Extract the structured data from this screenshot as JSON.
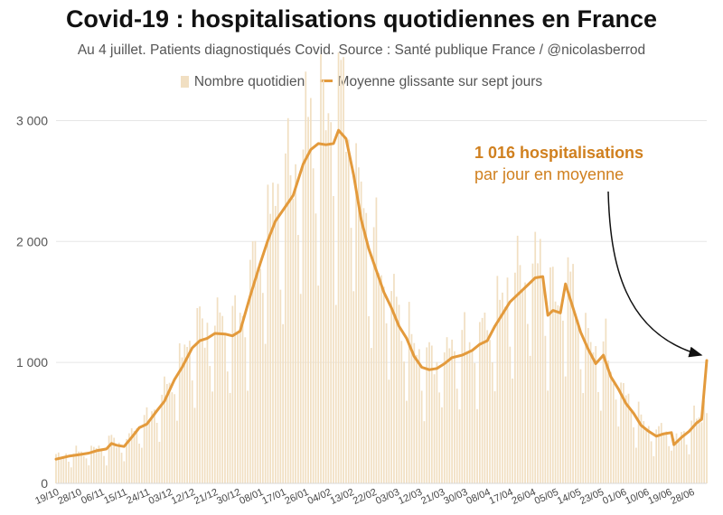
{
  "chart_data": {
    "type": "bar",
    "title": "Covid-19 : hospitalisations quotidiennes en France",
    "subtitle": "Au 4 juillet. Patients diagnostiqués Covid. Source : Santé publique France / @nicolasberrod",
    "legend": [
      "Nombre quotidien",
      "Moyenne glissante sur sept jours"
    ],
    "legend_position": "top-center",
    "ylim": [
      0,
      3200
    ],
    "yticks": [
      0,
      1000,
      2000,
      3000
    ],
    "ytick_labels": [
      "0",
      "1 000",
      "2 000",
      "3 000"
    ],
    "grid": true,
    "x_start": "2020-10-19",
    "x_end": "2021-07-04",
    "xtick_labels": [
      "19/10",
      "28/10",
      "06/11",
      "15/11",
      "24/11",
      "03/12",
      "12/12",
      "21/12",
      "30/12",
      "08/01",
      "17/01",
      "26/01",
      "04/02",
      "13/02",
      "22/02",
      "03/03",
      "12/03",
      "21/03",
      "30/03",
      "08/04",
      "17/04",
      "26/04",
      "05/05",
      "14/05",
      "23/05",
      "01/06",
      "10/06",
      "19/06",
      "28/06"
    ],
    "series": [
      {
        "name": "Moyenne glissante sur sept jours",
        "type": "line",
        "color": "#e39a3c",
        "points": [
          [
            "2020-10-19",
            200
          ],
          [
            "2020-10-24",
            225
          ],
          [
            "2020-10-29",
            240
          ],
          [
            "2020-11-01",
            250
          ],
          [
            "2020-11-04",
            270
          ],
          [
            "2020-11-08",
            285
          ],
          [
            "2020-11-10",
            330
          ],
          [
            "2020-11-12",
            315
          ],
          [
            "2020-11-15",
            305
          ],
          [
            "2020-11-18",
            380
          ],
          [
            "2020-11-21",
            460
          ],
          [
            "2020-11-24",
            490
          ],
          [
            "2020-11-28",
            600
          ],
          [
            "2020-12-01",
            680
          ],
          [
            "2020-12-05",
            860
          ],
          [
            "2020-12-08",
            960
          ],
          [
            "2020-12-12",
            1120
          ],
          [
            "2020-12-15",
            1180
          ],
          [
            "2020-12-18",
            1200
          ],
          [
            "2020-12-21",
            1240
          ],
          [
            "2020-12-25",
            1235
          ],
          [
            "2020-12-28",
            1220
          ],
          [
            "2020-12-31",
            1260
          ],
          [
            "2021-01-04",
            1550
          ],
          [
            "2021-01-08",
            1820
          ],
          [
            "2021-01-11",
            2010
          ],
          [
            "2021-01-14",
            2170
          ],
          [
            "2021-01-17",
            2260
          ],
          [
            "2021-01-21",
            2380
          ],
          [
            "2021-01-25",
            2640
          ],
          [
            "2021-01-28",
            2760
          ],
          [
            "2021-01-31",
            2810
          ],
          [
            "2021-02-03",
            2800
          ],
          [
            "2021-02-06",
            2810
          ],
          [
            "2021-02-08",
            2920
          ],
          [
            "2021-02-11",
            2850
          ],
          [
            "2021-02-14",
            2550
          ],
          [
            "2021-02-17",
            2180
          ],
          [
            "2021-02-20",
            1940
          ],
          [
            "2021-02-23",
            1760
          ],
          [
            "2021-02-26",
            1580
          ],
          [
            "2021-03-01",
            1450
          ],
          [
            "2021-03-04",
            1300
          ],
          [
            "2021-03-07",
            1200
          ],
          [
            "2021-03-10",
            1050
          ],
          [
            "2021-03-13",
            960
          ],
          [
            "2021-03-16",
            940
          ],
          [
            "2021-03-19",
            950
          ],
          [
            "2021-03-22",
            990
          ],
          [
            "2021-03-25",
            1040
          ],
          [
            "2021-03-29",
            1060
          ],
          [
            "2021-04-02",
            1100
          ],
          [
            "2021-04-05",
            1150
          ],
          [
            "2021-04-08",
            1180
          ],
          [
            "2021-04-11",
            1300
          ],
          [
            "2021-04-14",
            1400
          ],
          [
            "2021-04-17",
            1500
          ],
          [
            "2021-04-20",
            1560
          ],
          [
            "2021-04-24",
            1640
          ],
          [
            "2021-04-27",
            1700
          ],
          [
            "2021-04-30",
            1710
          ],
          [
            "2021-05-02",
            1390
          ],
          [
            "2021-05-04",
            1430
          ],
          [
            "2021-05-07",
            1410
          ],
          [
            "2021-05-09",
            1650
          ],
          [
            "2021-05-12",
            1450
          ],
          [
            "2021-05-15",
            1250
          ],
          [
            "2021-05-18",
            1110
          ],
          [
            "2021-05-21",
            990
          ],
          [
            "2021-05-24",
            1060
          ],
          [
            "2021-05-27",
            880
          ],
          [
            "2021-05-30",
            780
          ],
          [
            "2021-06-02",
            660
          ],
          [
            "2021-06-05",
            580
          ],
          [
            "2021-06-08",
            480
          ],
          [
            "2021-06-11",
            430
          ],
          [
            "2021-06-14",
            390
          ],
          [
            "2021-06-17",
            410
          ],
          [
            "2021-06-20",
            420
          ],
          [
            "2021-06-21",
            320
          ],
          [
            "2021-06-24",
            380
          ],
          [
            "2021-06-27",
            430
          ],
          [
            "2021-06-30",
            500
          ],
          [
            "2021-07-02",
            530
          ],
          [
            "2021-07-04",
            1016
          ]
        ]
      },
      {
        "name": "Nombre quotidien",
        "type": "bar",
        "color": "#f1dfc2",
        "shape": "daily values scattered around the seven-day average, with lower weekend values"
      }
    ],
    "annotations": [
      {
        "text_bold": "1 016 hospitalisations",
        "text": "par jour en moyenne",
        "value": 1016,
        "x": "2021-07-04"
      }
    ]
  }
}
